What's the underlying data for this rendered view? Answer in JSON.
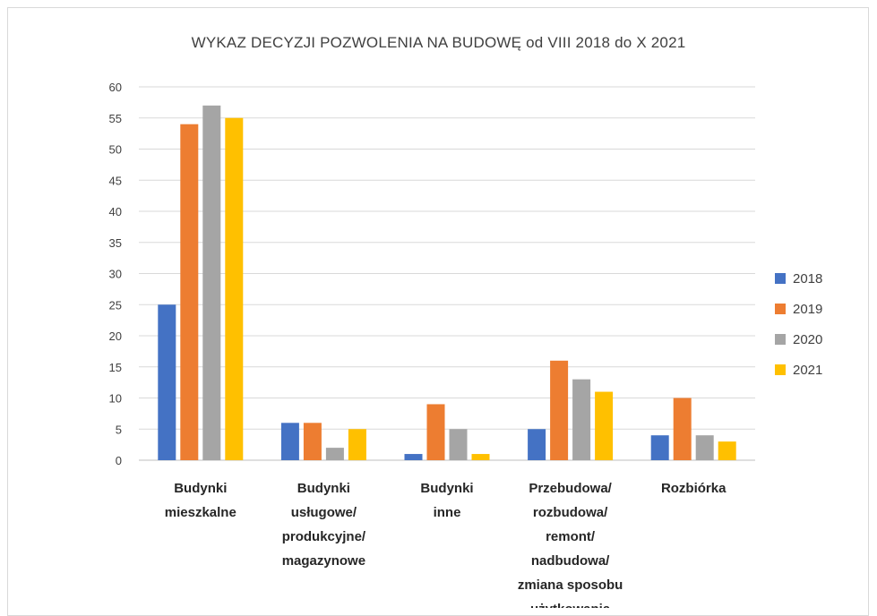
{
  "chart_data": {
    "type": "bar",
    "title": "WYKAZ DECYZJI POZWOLENIA NA BUDOWĘ od VIII 2018 do X 2021",
    "xlabel": "",
    "ylabel": "",
    "ylim": [
      0,
      60
    ],
    "yticks": [
      "0",
      "5",
      "10",
      "15",
      "20",
      "25",
      "30",
      "35",
      "40",
      "45",
      "50",
      "55",
      "60"
    ],
    "grid": true,
    "legend_position": "right",
    "categories": [
      [
        "Budynki",
        "mieszkalne"
      ],
      [
        "Budynki",
        "usługowe/",
        "produkcyjne/",
        "magazynowe"
      ],
      [
        "Budynki",
        "inne"
      ],
      [
        "Przebudowa/",
        "rozbudowa/",
        "remont/",
        "nadbudowa/",
        "zmiana sposobu",
        "użytkowania"
      ],
      [
        "Rozbiórka"
      ]
    ],
    "series": [
      {
        "name": "2018",
        "color": "#4472c4",
        "values": [
          25,
          6,
          1,
          5,
          4
        ]
      },
      {
        "name": "2019",
        "color": "#ed7d31",
        "values": [
          54,
          6,
          9,
          16,
          10
        ]
      },
      {
        "name": "2020",
        "color": "#a5a5a5",
        "values": [
          57,
          2,
          5,
          13,
          4
        ]
      },
      {
        "name": "2021",
        "color": "#ffc000",
        "values": [
          55,
          5,
          1,
          11,
          3
        ]
      }
    ]
  }
}
